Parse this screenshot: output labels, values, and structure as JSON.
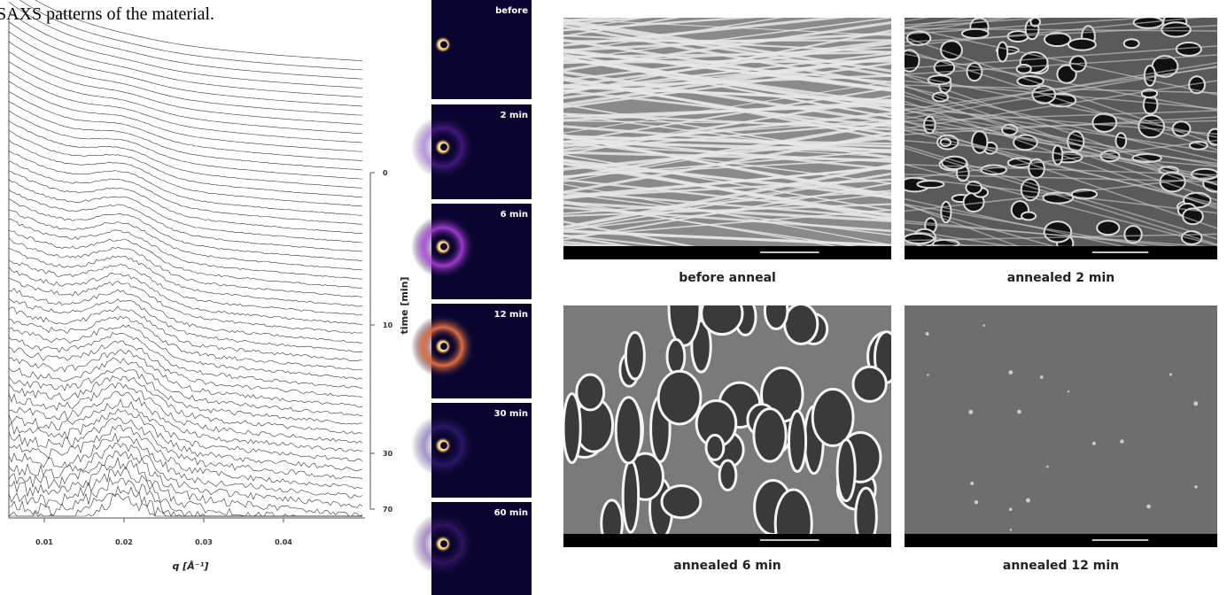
{
  "caption": "SAXS patterns of the material.",
  "waterfall": {
    "x_axis": {
      "label": "q [Å⁻¹]",
      "ticks": [
        "0.01",
        "0.02",
        "0.03",
        "0.04"
      ]
    },
    "time_axis": {
      "label": "time [min]",
      "ticks": [
        "0",
        "10",
        "30",
        "70"
      ]
    }
  },
  "saxs_patterns": [
    {
      "label": "before"
    },
    {
      "label": "2 min"
    },
    {
      "label": "6 min"
    },
    {
      "label": "12 min"
    },
    {
      "label": "30 min"
    },
    {
      "label": "60 min"
    }
  ],
  "sem_images": [
    {
      "caption": "before anneal"
    },
    {
      "caption": "annealed 2 min"
    },
    {
      "caption": "annealed 6 min"
    },
    {
      "caption": "annealed 12 min"
    }
  ]
}
